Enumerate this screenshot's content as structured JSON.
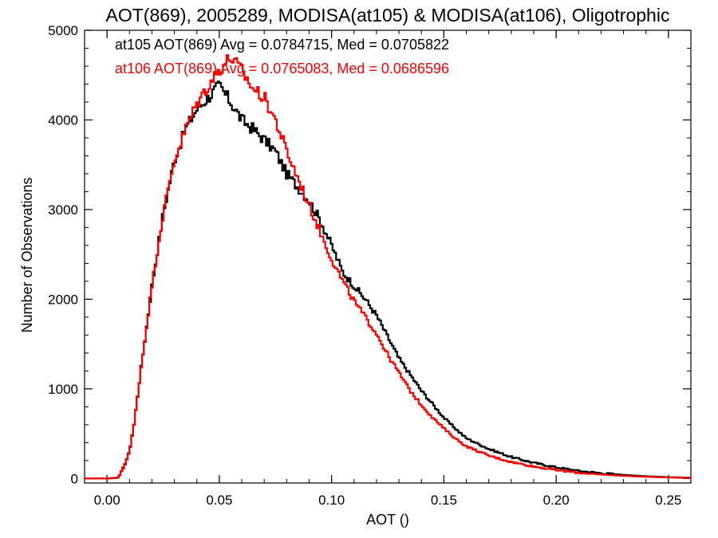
{
  "chart_data": {
    "type": "line",
    "title": "AOT(869), 2005289, MODISA(at105) & MODISA(at106), Oligotrophic",
    "xlabel": "AOT ()",
    "ylabel": "Number of Observations",
    "xlim": [
      -0.01,
      0.26
    ],
    "ylim": [
      -50,
      5000
    ],
    "xticks": [
      "0.00",
      "0.05",
      "0.10",
      "0.15",
      "0.20",
      "0.25"
    ],
    "yticks": [
      "0",
      "1000",
      "2000",
      "3000",
      "4000",
      "5000"
    ],
    "step": true,
    "grid": false,
    "legend_position": "top-left",
    "series": [
      {
        "name": "at105 AOT(869) Avg = 0.0784715, Med = 0.0705822",
        "color": "#000000",
        "x": [
          -0.01,
          0.0,
          0.005,
          0.007,
          0.01,
          0.012,
          0.015,
          0.02,
          0.025,
          0.03,
          0.035,
          0.04,
          0.045,
          0.05,
          0.055,
          0.06,
          0.065,
          0.07,
          0.075,
          0.08,
          0.085,
          0.09,
          0.095,
          0.1,
          0.105,
          0.11,
          0.115,
          0.12,
          0.125,
          0.13,
          0.135,
          0.14,
          0.145,
          0.15,
          0.155,
          0.16,
          0.17,
          0.18,
          0.19,
          0.2,
          0.21,
          0.22,
          0.23,
          0.24,
          0.25,
          0.26
        ],
        "y": [
          0,
          0,
          10,
          100,
          300,
          600,
          1200,
          2150,
          2950,
          3550,
          3900,
          4120,
          4250,
          4380,
          4200,
          4000,
          3900,
          3780,
          3650,
          3400,
          3250,
          3100,
          2880,
          2600,
          2300,
          2150,
          2000,
          1820,
          1580,
          1340,
          1160,
          980,
          830,
          680,
          560,
          450,
          330,
          240,
          175,
          125,
          85,
          60,
          40,
          25,
          15,
          8
        ]
      },
      {
        "name": "at106 AOT(869) Avg = 0.0765083, Med = 0.0686596",
        "color": "#ff0000",
        "x": [
          -0.01,
          0.0,
          0.005,
          0.007,
          0.01,
          0.012,
          0.015,
          0.02,
          0.025,
          0.03,
          0.035,
          0.04,
          0.045,
          0.05,
          0.055,
          0.06,
          0.065,
          0.07,
          0.075,
          0.08,
          0.085,
          0.09,
          0.095,
          0.1,
          0.105,
          0.11,
          0.115,
          0.12,
          0.125,
          0.13,
          0.135,
          0.14,
          0.145,
          0.15,
          0.155,
          0.16,
          0.17,
          0.18,
          0.19,
          0.2,
          0.21,
          0.22,
          0.23,
          0.24,
          0.25,
          0.26
        ],
        "y": [
          0,
          0,
          10,
          100,
          300,
          600,
          1200,
          2150,
          2950,
          3550,
          3900,
          4180,
          4380,
          4560,
          4700,
          4550,
          4350,
          4250,
          4000,
          3650,
          3350,
          3050,
          2750,
          2450,
          2200,
          1980,
          1800,
          1620,
          1380,
          1180,
          980,
          820,
          680,
          560,
          450,
          360,
          255,
          185,
          135,
          95,
          65,
          45,
          30,
          20,
          12,
          6
        ]
      }
    ]
  }
}
